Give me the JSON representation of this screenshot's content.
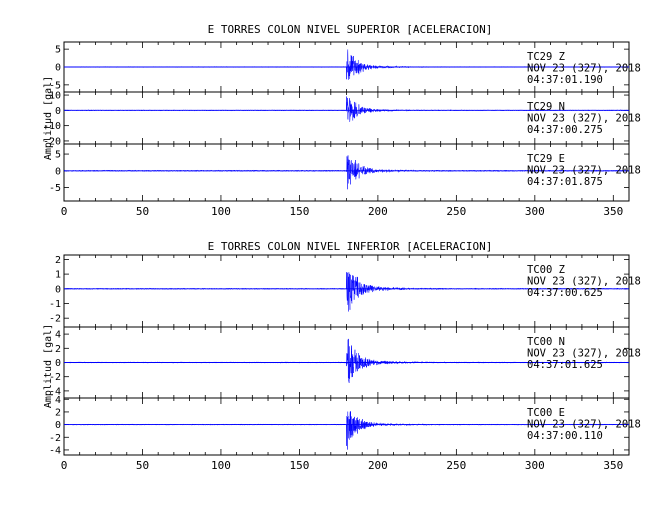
{
  "colors": {
    "trace": "#0000ff",
    "axis": "#000000",
    "background": "#ffffff"
  },
  "chart_data": [
    {
      "type": "line",
      "title": "E TORRES COLON NIVEL SUPERIOR [ACELERACION]",
      "ylabel": "Amplitud [gal]",
      "xlim": [
        0,
        360
      ],
      "xticks": [
        "0",
        "50",
        "100",
        "150",
        "200",
        "250",
        "300",
        "350"
      ],
      "event_time_s": 180,
      "panels": [
        {
          "ylim": [
            -7,
            7
          ],
          "yticks": [
            "5",
            "0",
            "-5"
          ],
          "peak": 6.5,
          "noise": 0.12,
          "label": {
            "station": "TC29   Z",
            "date": "NOV 23 (327), 2018",
            "time": "04:37:01.190"
          }
        },
        {
          "ylim": [
            -22,
            12
          ],
          "yticks": [
            "10",
            "0",
            "-10",
            "-20"
          ],
          "peak": 13,
          "noise": 0.3,
          "label": {
            "station": "TC29   N",
            "date": "NOV 23 (327), 2018",
            "time": "04:37:00.275"
          }
        },
        {
          "ylim": [
            -9,
            8
          ],
          "yticks": [
            "5",
            "0",
            "-5"
          ],
          "peak": 7.5,
          "noise": 0.2,
          "label": {
            "station": "TC29   E",
            "date": "NOV 23 (327), 2018",
            "time": "04:37:01.875"
          }
        }
      ]
    },
    {
      "type": "line",
      "title": "E TORRES COLON NIVEL INFERIOR [ACELERACION]",
      "ylabel": "Amplitud [gal]",
      "xlim": [
        0,
        360
      ],
      "xticks": [
        "0",
        "50",
        "100",
        "150",
        "200",
        "250",
        "300",
        "350"
      ],
      "event_time_s": 180,
      "panels": [
        {
          "ylim": [
            -2.6,
            2.3
          ],
          "yticks": [
            "2",
            "1",
            "0",
            "-1",
            "-2"
          ],
          "peak": 2.3,
          "noise": 0.04,
          "label": {
            "station": "TC00   Z",
            "date": "NOV 23 (327), 2018",
            "time": "04:37:00.625"
          }
        },
        {
          "ylim": [
            -5,
            5
          ],
          "yticks": [
            "4",
            "2",
            "0",
            "-2",
            "-4"
          ],
          "peak": 4.5,
          "noise": 0.08,
          "label": {
            "station": "TC00   N",
            "date": "NOV 23 (327), 2018",
            "time": "04:37:01.625"
          }
        },
        {
          "ylim": [
            -4.8,
            4.2
          ],
          "yticks": [
            "4",
            "2",
            "0",
            "-2",
            "-4"
          ],
          "peak": 4.2,
          "noise": 0.08,
          "label": {
            "station": "TC00   E",
            "date": "NOV 23 (327), 2018",
            "time": "04:37:00.110"
          }
        }
      ]
    }
  ]
}
